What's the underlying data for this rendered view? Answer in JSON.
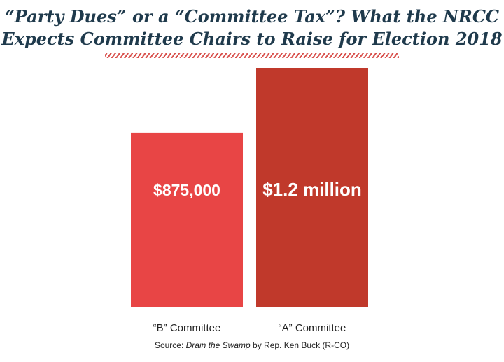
{
  "title_line1": "“Party Dues” or a “Committee Tax”? What the NRCC",
  "title_line2": "Expects Committee Chairs to Raise for Election 2018",
  "source": {
    "prefix": "Source: ",
    "work": "Drain the Swamp",
    "suffix": " by Rep. Ken Buck (R-CO)"
  },
  "chart_data": {
    "type": "bar",
    "categories": [
      "“B” Committee",
      "“A” Committee"
    ],
    "values": [
      875000,
      1200000
    ],
    "data_labels": [
      "$875,000",
      "$1.2 million"
    ],
    "colors": [
      "#e84545",
      "#c0392b"
    ],
    "title": "“Party Dues” or a “Committee Tax”? What the NRCC Expects Committee Chairs to Raise for Election 2018",
    "xlabel": "",
    "ylabel": "",
    "ylim": [
      0,
      1200000
    ],
    "grid": false,
    "legend": "none"
  }
}
